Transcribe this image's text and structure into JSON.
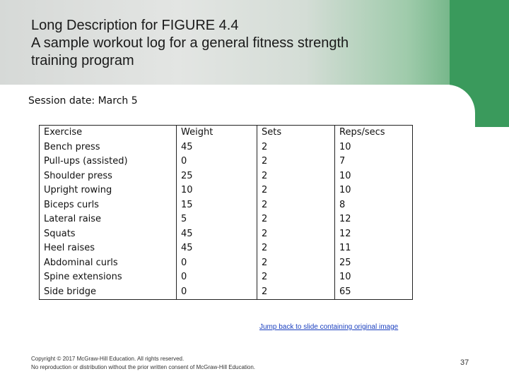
{
  "slide": {
    "title_lines": [
      "Long Description for FIGURE 4.4",
      "A sample workout log for a general fitness strength",
      "training program"
    ],
    "session_date": "Session date: March 5",
    "jump_link": "Jump back to slide containing original image",
    "footer_lines": [
      "Copyright © 2017 McGraw-Hill Education. All rights reserved.",
      "No reproduction or distribution without the prior written consent of McGraw-Hill Education."
    ],
    "page_number": "37"
  },
  "table": {
    "headers": [
      "Exercise",
      "Weight",
      "Sets",
      "Reps/secs"
    ],
    "rows": [
      [
        "Bench press",
        "45",
        "2",
        "10"
      ],
      [
        "Pull-ups (assisted)",
        "0",
        "2",
        "7"
      ],
      [
        "Shoulder press",
        "25",
        "2",
        "10"
      ],
      [
        "Upright rowing",
        "10",
        "2",
        "10"
      ],
      [
        "Biceps curls",
        "15",
        "2",
        "8"
      ],
      [
        "Lateral raise",
        "5",
        "2",
        "12"
      ],
      [
        "Squats",
        "45",
        "2",
        "12"
      ],
      [
        "Heel raises",
        "45",
        "2",
        "11"
      ],
      [
        "Abdominal curls",
        "0",
        "2",
        "25"
      ],
      [
        "Spine extensions",
        "0",
        "2",
        "10"
      ],
      [
        "Side bridge",
        "0",
        "2",
        "65"
      ]
    ]
  },
  "colors": {
    "accent_green": "#3a9a5c",
    "link_blue": "#1a3fbf"
  }
}
